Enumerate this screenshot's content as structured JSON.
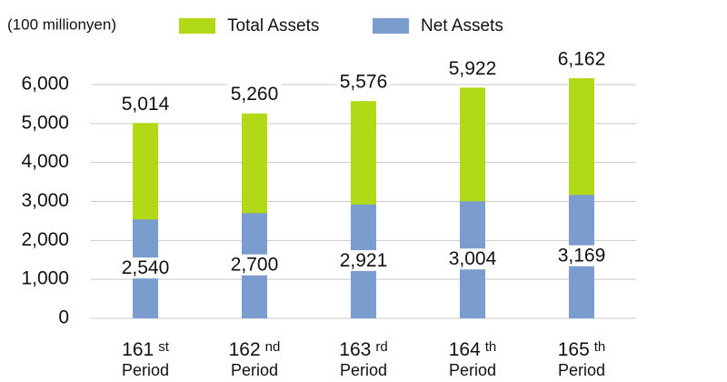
{
  "chart_data": {
    "type": "overlay_bar",
    "unit_label": "(100 millionyen)",
    "categories": [
      {
        "number": "161",
        "suffix": "st",
        "label": "Period"
      },
      {
        "number": "162",
        "suffix": "nd",
        "label": "Period"
      },
      {
        "number": "163",
        "suffix": "rd",
        "label": "Period"
      },
      {
        "number": "164",
        "suffix": "th",
        "label": "Period"
      },
      {
        "number": "165",
        "suffix": "th",
        "label": "Period"
      }
    ],
    "series": [
      {
        "name": "Total Assets",
        "color": "#b2d916",
        "values": [
          5014,
          5260,
          5576,
          5922,
          6162
        ],
        "value_labels": [
          "5,014",
          "5,260",
          "5,576",
          "5,922",
          "6,162"
        ]
      },
      {
        "name": "Net Assets",
        "color": "#7b9ccf",
        "values": [
          2540,
          2700,
          2921,
          3004,
          3169
        ],
        "value_labels": [
          "2,540",
          "2,700",
          "2,921",
          "3,004",
          "3,169"
        ]
      }
    ],
    "ylim": [
      0,
      6000
    ],
    "yticks": [
      0,
      {
        "value": 1000,
        "label": "1,000"
      },
      {
        "value": 2000,
        "label": "2,000"
      },
      {
        "value": 3000,
        "label": "3,000"
      },
      {
        "value": 4000,
        "label": "4,000"
      },
      {
        "value": 5000,
        "label": "5,000"
      },
      {
        "value": 6000,
        "label": "6,000"
      }
    ],
    "grid": true
  }
}
